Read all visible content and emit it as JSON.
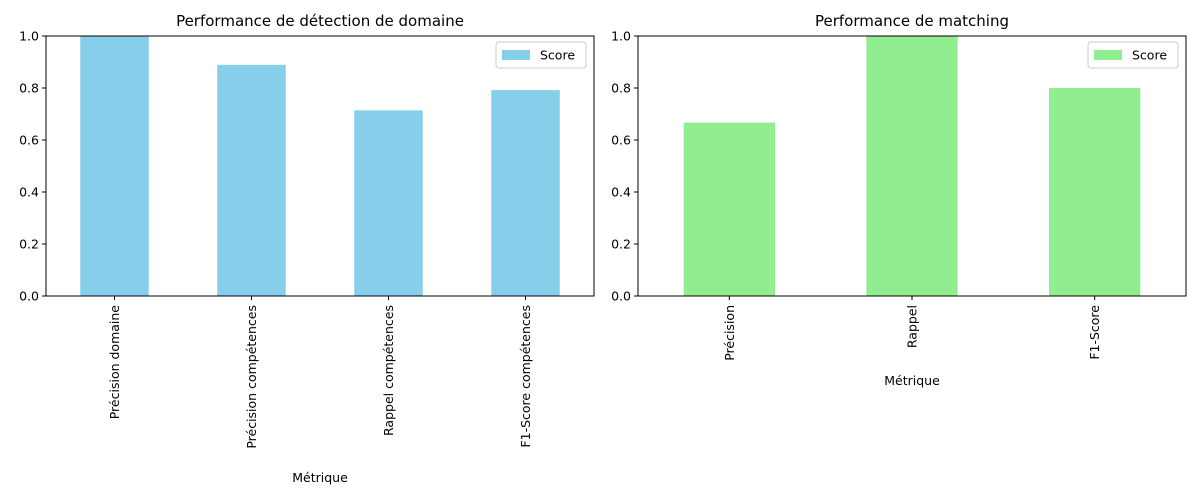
{
  "chart_data": [
    {
      "type": "bar",
      "title": "Performance de détection de domaine",
      "xlabel": "Métrique",
      "ylabel": "",
      "ylim": [
        0,
        1.0
      ],
      "yticks": [
        "0.0",
        "0.2",
        "0.4",
        "0.6",
        "0.8",
        "1.0"
      ],
      "categories": [
        "Précision domaine",
        "Précision compétences",
        "Rappel compétences",
        "F1-Score compétences"
      ],
      "series": [
        {
          "name": "Score",
          "values": [
            1.0,
            0.889,
            0.714,
            0.792
          ]
        }
      ],
      "color": "#87ceeb",
      "legend": "top-right",
      "grid": false
    },
    {
      "type": "bar",
      "title": "Performance de matching",
      "xlabel": "Métrique",
      "ylabel": "",
      "ylim": [
        0,
        1.0
      ],
      "yticks": [
        "0.0",
        "0.2",
        "0.4",
        "0.6",
        "0.8",
        "1.0"
      ],
      "categories": [
        "Précision",
        "Rappel",
        "F1-Score"
      ],
      "series": [
        {
          "name": "Score",
          "values": [
            0.667,
            1.0,
            0.8
          ]
        }
      ],
      "color": "#90ee90",
      "legend": "top-right",
      "grid": false
    }
  ]
}
